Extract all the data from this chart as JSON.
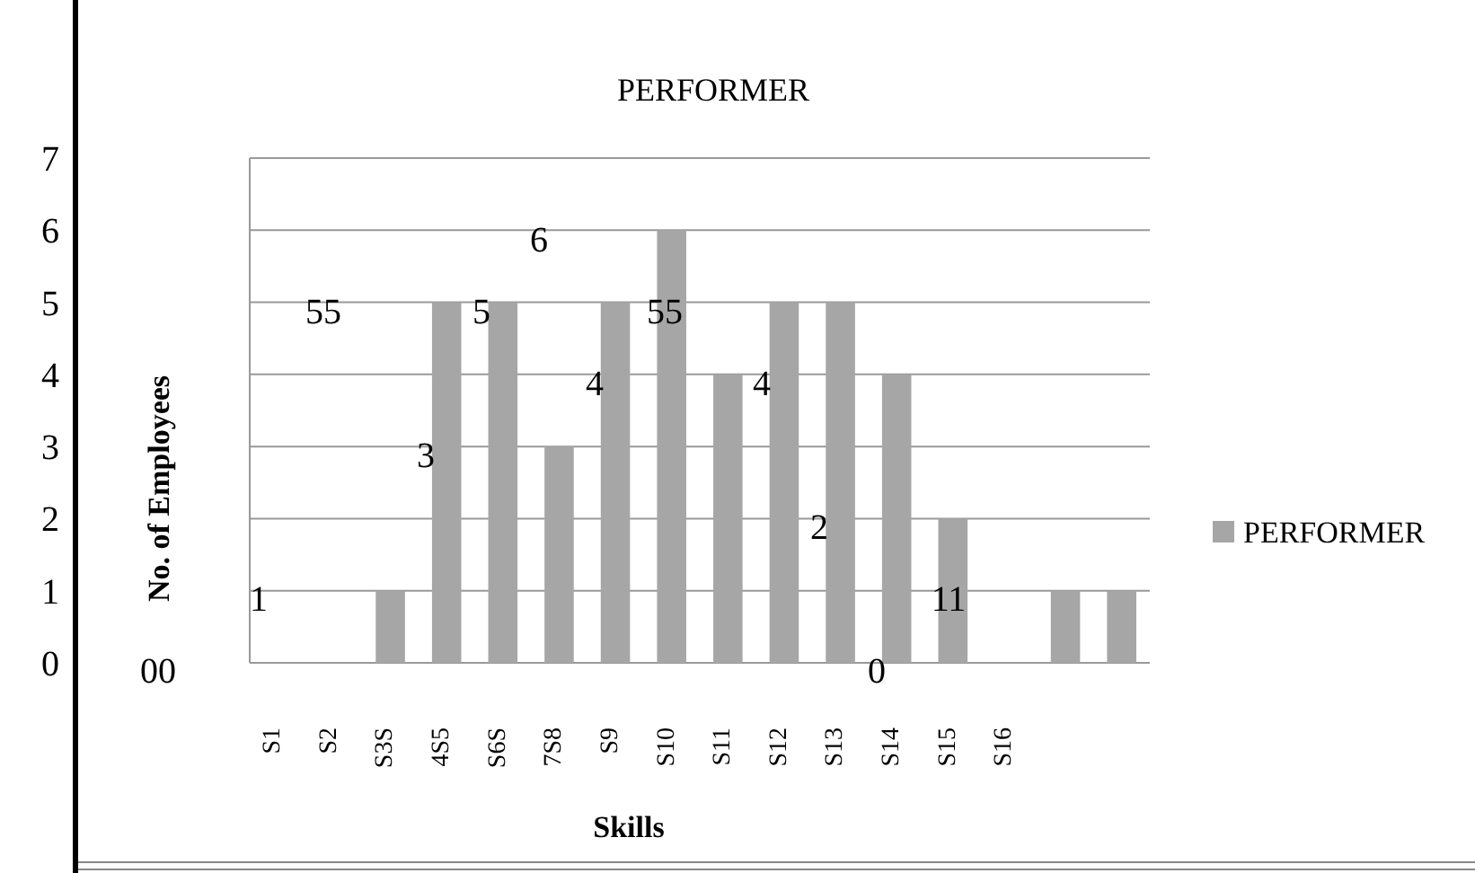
{
  "chart_data": {
    "type": "bar",
    "title": "PERFORMER",
    "xlabel": "Skills",
    "ylabel": "No. of Employees",
    "categories": [
      "S1",
      "S2",
      "S3S",
      "4S5",
      "S6S",
      "7S8",
      "S9",
      "S10",
      "S11",
      "S12",
      "S13",
      "S14",
      "S15",
      "S16",
      null,
      null
    ],
    "series": [
      {
        "name": "PERFORMER",
        "color": "#a6a6a6",
        "values": [
          0,
          0,
          1,
          5,
          5,
          3,
          5,
          6,
          4,
          5,
          5,
          4,
          2,
          0,
          1,
          1
        ]
      }
    ],
    "ylim": [
      0,
      7
    ],
    "yticks": [
      0,
      1,
      2,
      3,
      4,
      5,
      6,
      7
    ],
    "grid": "y",
    "legend": "right",
    "annotations": [
      "1",
      "55",
      "3",
      "5",
      "6",
      "4",
      "55",
      "4",
      "2",
      "0",
      "11",
      "00"
    ]
  }
}
